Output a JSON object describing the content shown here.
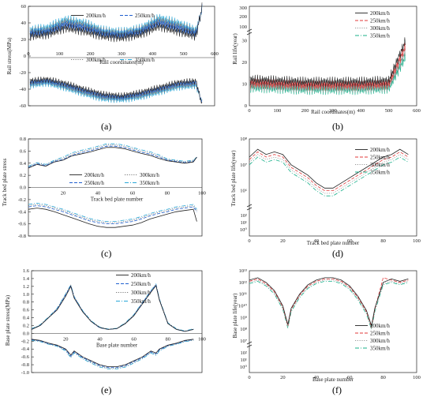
{
  "panel_labels": [
    "(a)",
    "(b)",
    "(c)",
    "(d)",
    "(e)",
    "(f)"
  ],
  "colors": {
    "200km/h": "#222222",
    "250km/h": "#1f5fcf",
    "300km/h": "#7a7a7a",
    "350km/h": "#2aa8d8",
    "b_250km/h": "#e03a3a",
    "b_300km/h": "#9a9a9a",
    "b_350km/h": "#18b08a"
  },
  "chart_data": [
    {
      "panel": "a",
      "type": "line",
      "xlabel": "Rail coordinates(m)",
      "ylabel": "Rail stress(MPa)",
      "xlim": [
        0,
        600
      ],
      "ylim": [
        -60,
        60
      ],
      "xticks": [
        "0",
        "100",
        "200",
        "300",
        "400",
        "500",
        "600"
      ],
      "yticks": [
        "-60",
        "-40",
        "-20",
        "0",
        "20",
        "40",
        "60"
      ],
      "legend": [
        "200km/h",
        "250km/h",
        "300km/h",
        "350km/h"
      ],
      "x": [
        0,
        60,
        120,
        180,
        240,
        300,
        360,
        420,
        480,
        540,
        560
      ],
      "series": [
        {
          "name": "200km/h",
          "upper": [
            24,
            26,
            34,
            30,
            24,
            22,
            26,
            36,
            30,
            24,
            60
          ],
          "lower": [
            -30,
            -28,
            -33,
            -40,
            -46,
            -48,
            -44,
            -38,
            -32,
            -30,
            -60
          ]
        },
        {
          "name": "250km/h",
          "upper": [
            27,
            29,
            38,
            34,
            27,
            25,
            29,
            40,
            34,
            27,
            58
          ],
          "lower": [
            -32,
            -30,
            -35,
            -42,
            -48,
            -50,
            -46,
            -40,
            -34,
            -32,
            -58
          ]
        },
        {
          "name": "300km/h",
          "upper": [
            29,
            31,
            41,
            37,
            29,
            27,
            31,
            43,
            37,
            29,
            57
          ],
          "lower": [
            -34,
            -31,
            -37,
            -44,
            -50,
            -51,
            -48,
            -42,
            -36,
            -34,
            -57
          ]
        },
        {
          "name": "350km/h",
          "upper": [
            31,
            34,
            44,
            40,
            31,
            29,
            33,
            46,
            40,
            31,
            56
          ],
          "lower": [
            -36,
            -33,
            -39,
            -46,
            -52,
            -53,
            -50,
            -44,
            -38,
            -36,
            -56
          ]
        }
      ]
    },
    {
      "panel": "b",
      "type": "line",
      "xlabel": "Rail coordinates(m)",
      "ylabel": "Rail life(year)",
      "xlim": [
        0,
        600
      ],
      "xticks": [
        "0",
        "100",
        "200",
        "300",
        "400",
        "500",
        "600"
      ],
      "yticks_upper": [
        "100",
        "200",
        "300"
      ],
      "yticks_lower": [
        "0",
        "10",
        "20",
        "30"
      ],
      "legend": [
        "200km/h",
        "250km/h",
        "300km/h",
        "350km/h"
      ],
      "x": [
        0,
        100,
        200,
        300,
        400,
        500,
        560
      ],
      "series": [
        {
          "name": "200km/h",
          "values": [
            24,
            23,
            22,
            22,
            22,
            23,
            60
          ]
        },
        {
          "name": "250km/h",
          "values": [
            21,
            20,
            19,
            19,
            19,
            20,
            55
          ]
        },
        {
          "name": "300km/h",
          "values": [
            19,
            18,
            17,
            17,
            17,
            18,
            50
          ]
        },
        {
          "name": "350km/h",
          "values": [
            17,
            16,
            15,
            15,
            15,
            16,
            45
          ]
        }
      ]
    },
    {
      "panel": "c",
      "type": "line",
      "xlabel": "Track bed plate number",
      "ylabel": "Track bed plate stress(MPa)",
      "xlim": [
        0,
        100
      ],
      "ylim": [
        -0.8,
        0.8
      ],
      "xticks": [
        "20",
        "40",
        "60",
        "80",
        "100"
      ],
      "yticks": [
        "-0.8",
        "-0.6",
        "-0.4",
        "-0.2",
        "0.0",
        "0.2",
        "0.4",
        "0.6",
        "0.8"
      ],
      "legend": [
        "200km/h",
        "250km/h",
        "300km/h",
        "350km/h"
      ],
      "x": [
        0,
        5,
        10,
        15,
        20,
        25,
        30,
        35,
        40,
        45,
        50,
        55,
        60,
        65,
        70,
        75,
        80,
        85,
        90,
        95,
        97
      ],
      "series": [
        {
          "name": "200km/h",
          "upper": [
            0.32,
            0.38,
            0.35,
            0.42,
            0.45,
            0.52,
            0.55,
            0.58,
            0.62,
            0.66,
            0.66,
            0.64,
            0.6,
            0.56,
            0.53,
            0.48,
            0.44,
            0.42,
            0.4,
            0.42,
            0.5
          ],
          "lower": [
            -0.36,
            -0.34,
            -0.36,
            -0.4,
            -0.45,
            -0.5,
            -0.55,
            -0.6,
            -0.64,
            -0.66,
            -0.66,
            -0.64,
            -0.62,
            -0.58,
            -0.52,
            -0.48,
            -0.44,
            -0.4,
            -0.38,
            -0.36,
            -0.56
          ]
        },
        {
          "name": "250km/h",
          "upper": [
            0.33,
            0.39,
            0.36,
            0.43,
            0.46,
            0.53,
            0.57,
            0.6,
            0.64,
            0.68,
            0.68,
            0.66,
            0.62,
            0.58,
            0.55,
            0.5,
            0.45,
            0.43,
            0.41,
            0.43,
            0.5
          ],
          "lower": [
            -0.32,
            -0.3,
            -0.32,
            -0.36,
            -0.4,
            -0.45,
            -0.5,
            -0.55,
            -0.58,
            -0.6,
            -0.6,
            -0.58,
            -0.56,
            -0.52,
            -0.47,
            -0.43,
            -0.4,
            -0.36,
            -0.34,
            -0.32,
            -0.4
          ]
        },
        {
          "name": "300km/h",
          "upper": [
            0.34,
            0.4,
            0.37,
            0.44,
            0.48,
            0.55,
            0.59,
            0.62,
            0.66,
            0.7,
            0.7,
            0.68,
            0.64,
            0.6,
            0.57,
            0.52,
            0.46,
            0.44,
            0.42,
            0.44,
            0.5
          ],
          "lower": [
            -0.3,
            -0.28,
            -0.3,
            -0.34,
            -0.38,
            -0.43,
            -0.48,
            -0.53,
            -0.56,
            -0.58,
            -0.58,
            -0.56,
            -0.54,
            -0.5,
            -0.45,
            -0.41,
            -0.38,
            -0.34,
            -0.32,
            -0.3,
            -0.38
          ]
        },
        {
          "name": "350km/h",
          "upper": [
            0.35,
            0.41,
            0.38,
            0.45,
            0.5,
            0.57,
            0.61,
            0.64,
            0.68,
            0.72,
            0.72,
            0.7,
            0.66,
            0.62,
            0.59,
            0.54,
            0.47,
            0.45,
            0.43,
            0.45,
            0.5
          ],
          "lower": [
            -0.28,
            -0.26,
            -0.28,
            -0.32,
            -0.36,
            -0.41,
            -0.46,
            -0.51,
            -0.54,
            -0.56,
            -0.56,
            -0.54,
            -0.52,
            -0.48,
            -0.43,
            -0.39,
            -0.36,
            -0.32,
            -0.3,
            -0.28,
            -0.36
          ]
        }
      ]
    },
    {
      "panel": "d",
      "type": "line",
      "scale": "log",
      "xlabel": "Track bed plate number",
      "ylabel": "Track bed plate life(year)",
      "xlim": [
        0,
        100
      ],
      "xticks": [
        "0",
        "20",
        "40",
        "60",
        "80",
        "100"
      ],
      "yticks_upper": [
        "10⁶",
        "10⁷",
        "10⁸"
      ],
      "yticks_lower": [
        "10⁰",
        "10¹",
        "10²"
      ],
      "legend": [
        "200km/h",
        "250km/h",
        "300km/h",
        "350km/h"
      ],
      "x": [
        0,
        5,
        10,
        15,
        20,
        25,
        30,
        35,
        40,
        45,
        50,
        55,
        60,
        65,
        70,
        75,
        80,
        85,
        90,
        95
      ],
      "series": [
        {
          "name": "200km/h",
          "values": [
            7.3,
            7.6,
            7.4,
            7.5,
            7.4,
            7.0,
            6.8,
            6.6,
            6.3,
            6.1,
            6.1,
            6.3,
            6.5,
            6.7,
            6.9,
            7.1,
            7.3,
            7.4,
            7.6,
            7.4
          ]
        },
        {
          "name": "250km/h",
          "values": [
            7.2,
            7.5,
            7.3,
            7.4,
            7.3,
            6.9,
            6.7,
            6.5,
            6.2,
            6.0,
            6.0,
            6.2,
            6.4,
            6.6,
            6.8,
            7.0,
            7.2,
            7.3,
            7.5,
            7.3
          ]
        },
        {
          "name": "300km/h",
          "values": [
            7.1,
            7.4,
            7.2,
            7.3,
            7.2,
            6.8,
            6.6,
            6.4,
            6.1,
            5.9,
            5.9,
            6.1,
            6.3,
            6.5,
            6.7,
            6.9,
            7.1,
            7.2,
            7.4,
            7.2
          ]
        },
        {
          "name": "350km/h",
          "values": [
            7.0,
            7.3,
            7.1,
            7.2,
            7.1,
            6.7,
            6.5,
            6.3,
            6.0,
            5.8,
            5.8,
            6.0,
            6.2,
            6.4,
            6.6,
            6.8,
            7.0,
            7.1,
            7.3,
            7.1
          ]
        }
      ]
    },
    {
      "panel": "e",
      "type": "line",
      "xlabel": "Base plate number",
      "ylabel": "Base plate stress(MPa)",
      "xlim": [
        0,
        100
      ],
      "ylim": [
        -1.0,
        1.6
      ],
      "xticks": [
        "20",
        "40",
        "60",
        "80",
        "100"
      ],
      "yticks": [
        "-1.0",
        "-0.8",
        "-0.6",
        "-0.4",
        "-0.2",
        "0.0",
        "0.2",
        "0.4",
        "0.6",
        "0.8",
        "1.0",
        "1.2",
        "1.4",
        "1.6"
      ],
      "legend": [
        "200km/h",
        "250km/h",
        "300km/h",
        "350km/h"
      ],
      "x": [
        0,
        5,
        10,
        15,
        20,
        23,
        25,
        30,
        35,
        40,
        45,
        50,
        55,
        60,
        65,
        70,
        73,
        75,
        80,
        85,
        90,
        95
      ],
      "series": [
        {
          "name": "200km/h",
          "upper": [
            0.1,
            0.2,
            0.4,
            0.6,
            0.95,
            1.2,
            0.9,
            0.55,
            0.3,
            0.15,
            0.1,
            0.12,
            0.25,
            0.45,
            0.75,
            1.05,
            1.22,
            0.85,
            0.25,
            0.1,
            0.05,
            0.1
          ],
          "lower": [
            -0.15,
            -0.18,
            -0.25,
            -0.3,
            -0.4,
            -0.55,
            -0.45,
            -0.6,
            -0.7,
            -0.8,
            -0.85,
            -0.85,
            -0.8,
            -0.7,
            -0.6,
            -0.45,
            -0.5,
            -0.4,
            -0.3,
            -0.25,
            -0.18,
            -0.15
          ]
        },
        {
          "name": "250km/h",
          "upper": [
            0.1,
            0.2,
            0.4,
            0.62,
            0.98,
            1.22,
            0.92,
            0.56,
            0.3,
            0.14,
            0.1,
            0.12,
            0.25,
            0.46,
            0.77,
            1.07,
            1.24,
            0.86,
            0.25,
            0.1,
            0.05,
            0.1
          ],
          "lower": [
            -0.16,
            -0.19,
            -0.26,
            -0.31,
            -0.42,
            -0.58,
            -0.47,
            -0.62,
            -0.72,
            -0.82,
            -0.87,
            -0.87,
            -0.82,
            -0.72,
            -0.62,
            -0.47,
            -0.52,
            -0.42,
            -0.31,
            -0.26,
            -0.19,
            -0.16
          ]
        },
        {
          "name": "300km/h",
          "upper": [
            0.11,
            0.21,
            0.41,
            0.63,
            1.0,
            1.23,
            0.93,
            0.57,
            0.31,
            0.15,
            0.1,
            0.12,
            0.26,
            0.47,
            0.78,
            1.08,
            1.25,
            0.87,
            0.26,
            0.11,
            0.05,
            0.11
          ],
          "lower": [
            -0.17,
            -0.2,
            -0.27,
            -0.32,
            -0.43,
            -0.6,
            -0.48,
            -0.63,
            -0.74,
            -0.84,
            -0.89,
            -0.89,
            -0.84,
            -0.74,
            -0.63,
            -0.48,
            -0.54,
            -0.43,
            -0.32,
            -0.27,
            -0.2,
            -0.17
          ]
        },
        {
          "name": "350km/h",
          "upper": [
            0.12,
            0.22,
            0.42,
            0.64,
            1.01,
            1.24,
            0.94,
            0.58,
            0.32,
            0.16,
            0.11,
            0.13,
            0.27,
            0.48,
            0.79,
            1.09,
            1.26,
            0.88,
            0.27,
            0.12,
            0.06,
            0.12
          ],
          "lower": [
            -0.18,
            -0.21,
            -0.28,
            -0.33,
            -0.45,
            -0.62,
            -0.5,
            -0.65,
            -0.76,
            -0.86,
            -0.91,
            -0.91,
            -0.86,
            -0.76,
            -0.65,
            -0.5,
            -0.56,
            -0.45,
            -0.33,
            -0.28,
            -0.21,
            -0.18
          ]
        }
      ]
    },
    {
      "panel": "f",
      "type": "line",
      "scale": "log",
      "xlabel": "Base plate number",
      "ylabel": "Base plate life(year)",
      "xlim": [
        0,
        100
      ],
      "xticks": [
        "0",
        "20",
        "40",
        "60",
        "80",
        "100"
      ],
      "yticks_upper": [
        "10⁷",
        "10⁸",
        "10⁹",
        "10¹⁰",
        "10¹¹",
        "10¹²",
        "10¹³"
      ],
      "yticks_lower": [
        "10⁰",
        "10¹",
        "10²"
      ],
      "legend": [
        "200km/h",
        "250km/h",
        "300km/h",
        "350km/h"
      ],
      "x": [
        0,
        5,
        10,
        15,
        20,
        23,
        25,
        30,
        35,
        40,
        45,
        50,
        55,
        60,
        65,
        70,
        73,
        75,
        80,
        85,
        90,
        95
      ],
      "series": [
        {
          "name": "200km/h",
          "values": [
            12.2,
            12.4,
            12.0,
            11.3,
            10.0,
            8.4,
            9.8,
            11.0,
            11.8,
            12.2,
            12.4,
            12.4,
            12.2,
            11.7,
            10.8,
            9.6,
            8.3,
            9.8,
            12.0,
            12.3,
            12.1,
            12.3
          ]
        },
        {
          "name": "250km/h",
          "values": [
            12.1,
            12.3,
            11.9,
            11.2,
            9.9,
            8.3,
            9.7,
            10.9,
            11.7,
            12.1,
            12.3,
            12.3,
            12.1,
            11.6,
            10.7,
            9.5,
            8.2,
            9.7,
            12.4,
            12.2,
            12.0,
            12.2
          ]
        },
        {
          "name": "300km/h",
          "values": [
            12.0,
            12.2,
            11.8,
            11.1,
            9.8,
            8.2,
            9.6,
            10.8,
            11.6,
            12.0,
            12.2,
            12.2,
            12.0,
            11.5,
            10.6,
            9.4,
            8.1,
            9.6,
            11.9,
            12.1,
            11.9,
            12.1
          ]
        },
        {
          "name": "350km/h",
          "values": [
            11.9,
            12.1,
            11.7,
            11.0,
            9.7,
            8.1,
            9.5,
            10.7,
            11.5,
            11.9,
            12.1,
            12.1,
            11.9,
            11.4,
            10.5,
            9.3,
            8.0,
            9.5,
            11.8,
            12.0,
            11.8,
            12.0
          ]
        }
      ]
    }
  ]
}
